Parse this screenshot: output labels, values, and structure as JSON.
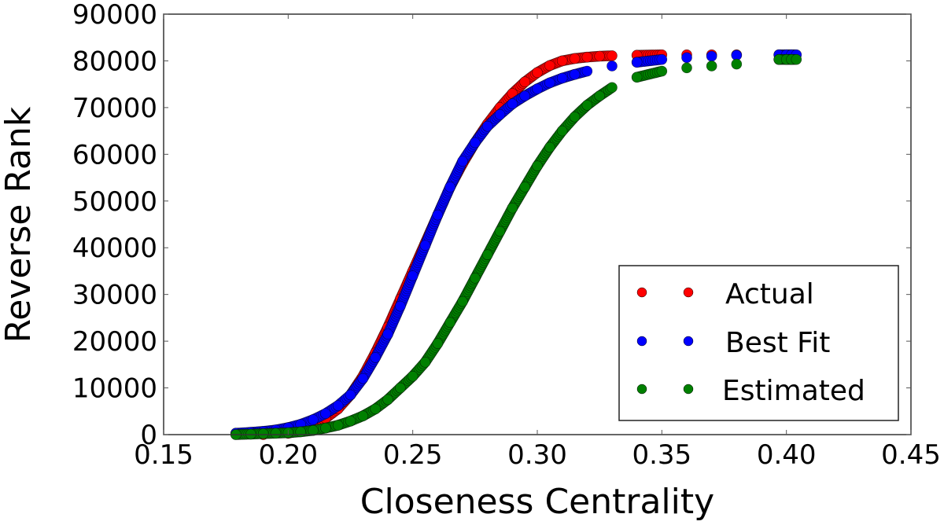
{
  "chart_data": {
    "type": "scatter",
    "title": "",
    "xlabel": "Closeness Centrality",
    "ylabel": "Reverse Rank",
    "xlim": [
      0.15,
      0.45
    ],
    "ylim": [
      0,
      90000
    ],
    "xticks": [
      0.15,
      0.2,
      0.25,
      0.3,
      0.35,
      0.4,
      0.45
    ],
    "xtick_labels": [
      "0.15",
      "0.20",
      "0.25",
      "0.30",
      "0.35",
      "0.40",
      "0.45"
    ],
    "yticks": [
      0,
      10000,
      20000,
      30000,
      40000,
      50000,
      60000,
      70000,
      80000,
      90000
    ],
    "ytick_labels": [
      "0",
      "10000",
      "20000",
      "30000",
      "40000",
      "50000",
      "60000",
      "70000",
      "80000",
      "90000"
    ],
    "grid": false,
    "legend_position": "lower right",
    "series": [
      {
        "name": "Actual",
        "color": "#ff0000",
        "x": [
          0.19,
          0.2,
          0.205,
          0.21,
          0.215,
          0.22,
          0.225,
          0.23,
          0.235,
          0.24,
          0.245,
          0.25,
          0.255,
          0.26,
          0.265,
          0.27,
          0.275,
          0.28,
          0.285,
          0.29,
          0.295,
          0.3,
          0.305,
          0.31,
          0.315,
          0.32,
          0.325,
          0.33,
          0.34,
          0.35,
          0.36,
          0.37,
          0.38
        ],
        "y": [
          0,
          300,
          800,
          1800,
          3500,
          5500,
          8500,
          12500,
          17500,
          23000,
          29000,
          35000,
          41000,
          47000,
          53000,
          58000,
          62500,
          66500,
          70000,
          73000,
          75500,
          77500,
          79000,
          80000,
          80500,
          80800,
          81000,
          81100,
          81200,
          81300,
          81300,
          81300,
          81300
        ]
      },
      {
        "name": "Best Fit",
        "color": "#0000ff",
        "x": [
          0.179,
          0.185,
          0.19,
          0.195,
          0.2,
          0.205,
          0.21,
          0.215,
          0.22,
          0.225,
          0.23,
          0.235,
          0.24,
          0.245,
          0.25,
          0.255,
          0.26,
          0.265,
          0.27,
          0.275,
          0.28,
          0.285,
          0.29,
          0.295,
          0.3,
          0.305,
          0.31,
          0.315,
          0.32,
          0.33,
          0.34,
          0.35,
          0.36,
          0.37,
          0.38,
          0.397,
          0.4,
          0.402,
          0.404
        ],
        "y": [
          300,
          500,
          700,
          1000,
          1500,
          2200,
          3200,
          4500,
          6200,
          8500,
          12000,
          16500,
          21500,
          27500,
          34000,
          40500,
          47000,
          53000,
          58500,
          62500,
          66000,
          68500,
          70800,
          72500,
          74000,
          75300,
          76300,
          77100,
          77800,
          78900,
          79700,
          80300,
          80700,
          81000,
          81200,
          81300,
          81300,
          81300,
          81300
        ]
      },
      {
        "name": "Estimated",
        "color": "#008000",
        "x": [
          0.179,
          0.185,
          0.19,
          0.195,
          0.2,
          0.205,
          0.21,
          0.215,
          0.22,
          0.225,
          0.23,
          0.235,
          0.24,
          0.245,
          0.25,
          0.255,
          0.26,
          0.265,
          0.27,
          0.275,
          0.28,
          0.285,
          0.29,
          0.295,
          0.3,
          0.305,
          0.31,
          0.315,
          0.32,
          0.325,
          0.33,
          0.34,
          0.35,
          0.36,
          0.37,
          0.38,
          0.397,
          0.4,
          0.402,
          0.404
        ],
        "y": [
          0,
          100,
          200,
          300,
          400,
          600,
          900,
          1400,
          2000,
          2900,
          4000,
          5500,
          7500,
          10000,
          12500,
          15500,
          19500,
          24000,
          28500,
          33500,
          38500,
          43500,
          48500,
          53000,
          57500,
          61500,
          65000,
          68000,
          70500,
          72500,
          74300,
          76500,
          77800,
          78500,
          78900,
          79300,
          80300,
          80300,
          80300,
          80300
        ]
      }
    ]
  },
  "legend": {
    "items": [
      {
        "label": "Actual",
        "color": "#ff0000"
      },
      {
        "label": "Best Fit",
        "color": "#0000ff"
      },
      {
        "label": "Estimated",
        "color": "#008000"
      }
    ]
  },
  "axes": {
    "xlabel": "Closeness Centrality",
    "ylabel": "Reverse Rank"
  }
}
